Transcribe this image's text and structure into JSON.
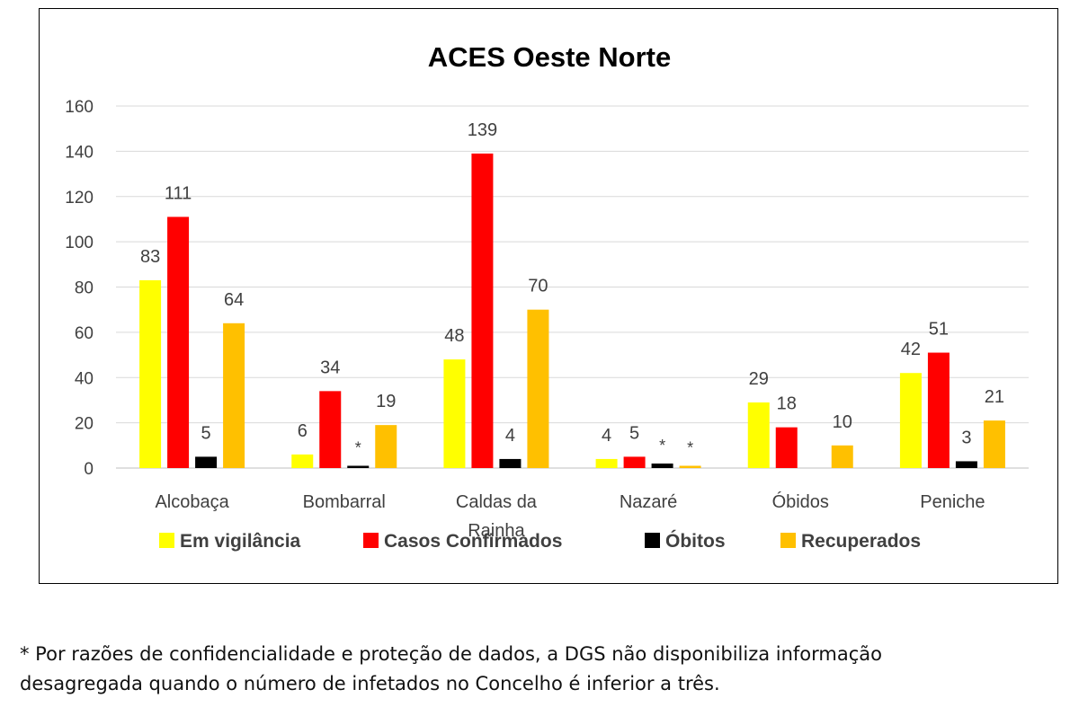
{
  "chart_data": {
    "type": "bar",
    "title": "ACES Oeste Norte",
    "xlabel": "",
    "ylabel": "",
    "ylim": [
      0,
      160
    ],
    "yticks": [
      0,
      20,
      40,
      60,
      80,
      100,
      120,
      140,
      160
    ],
    "grid": true,
    "legend_position": "bottom",
    "categories": [
      "Alcobaça",
      "Bombarral",
      "Caldas da Rainha",
      "Nazaré",
      "Óbidos",
      "Peniche"
    ],
    "series": [
      {
        "name": "Em vigilância",
        "color": "#FFFF00",
        "values": [
          83,
          6,
          48,
          4,
          29,
          42
        ],
        "labels": [
          "83",
          "6",
          "48",
          "4",
          "29",
          "42"
        ]
      },
      {
        "name": "Casos Confirmados",
        "color": "#FF0000",
        "values": [
          111,
          34,
          139,
          5,
          18,
          51
        ],
        "labels": [
          "111",
          "34",
          "139",
          "5",
          "18",
          "51"
        ]
      },
      {
        "name": "Óbitos",
        "color": "#000000",
        "values": [
          5,
          1,
          4,
          2,
          0,
          3
        ],
        "labels": [
          "5",
          "*",
          "4",
          "*",
          "",
          "3"
        ]
      },
      {
        "name": "Recuperados",
        "color": "#FFC000",
        "values": [
          64,
          19,
          70,
          1,
          10,
          21
        ],
        "labels": [
          "64",
          "19",
          "70",
          "*",
          "10",
          "21"
        ]
      }
    ]
  },
  "footnote": {
    "line1": "* Por razões de confidencialidade e proteção de dados, a DGS não disponibiliza informação",
    "line2": "desagregada quando o número de infetados no Concelho é inferior a três."
  }
}
